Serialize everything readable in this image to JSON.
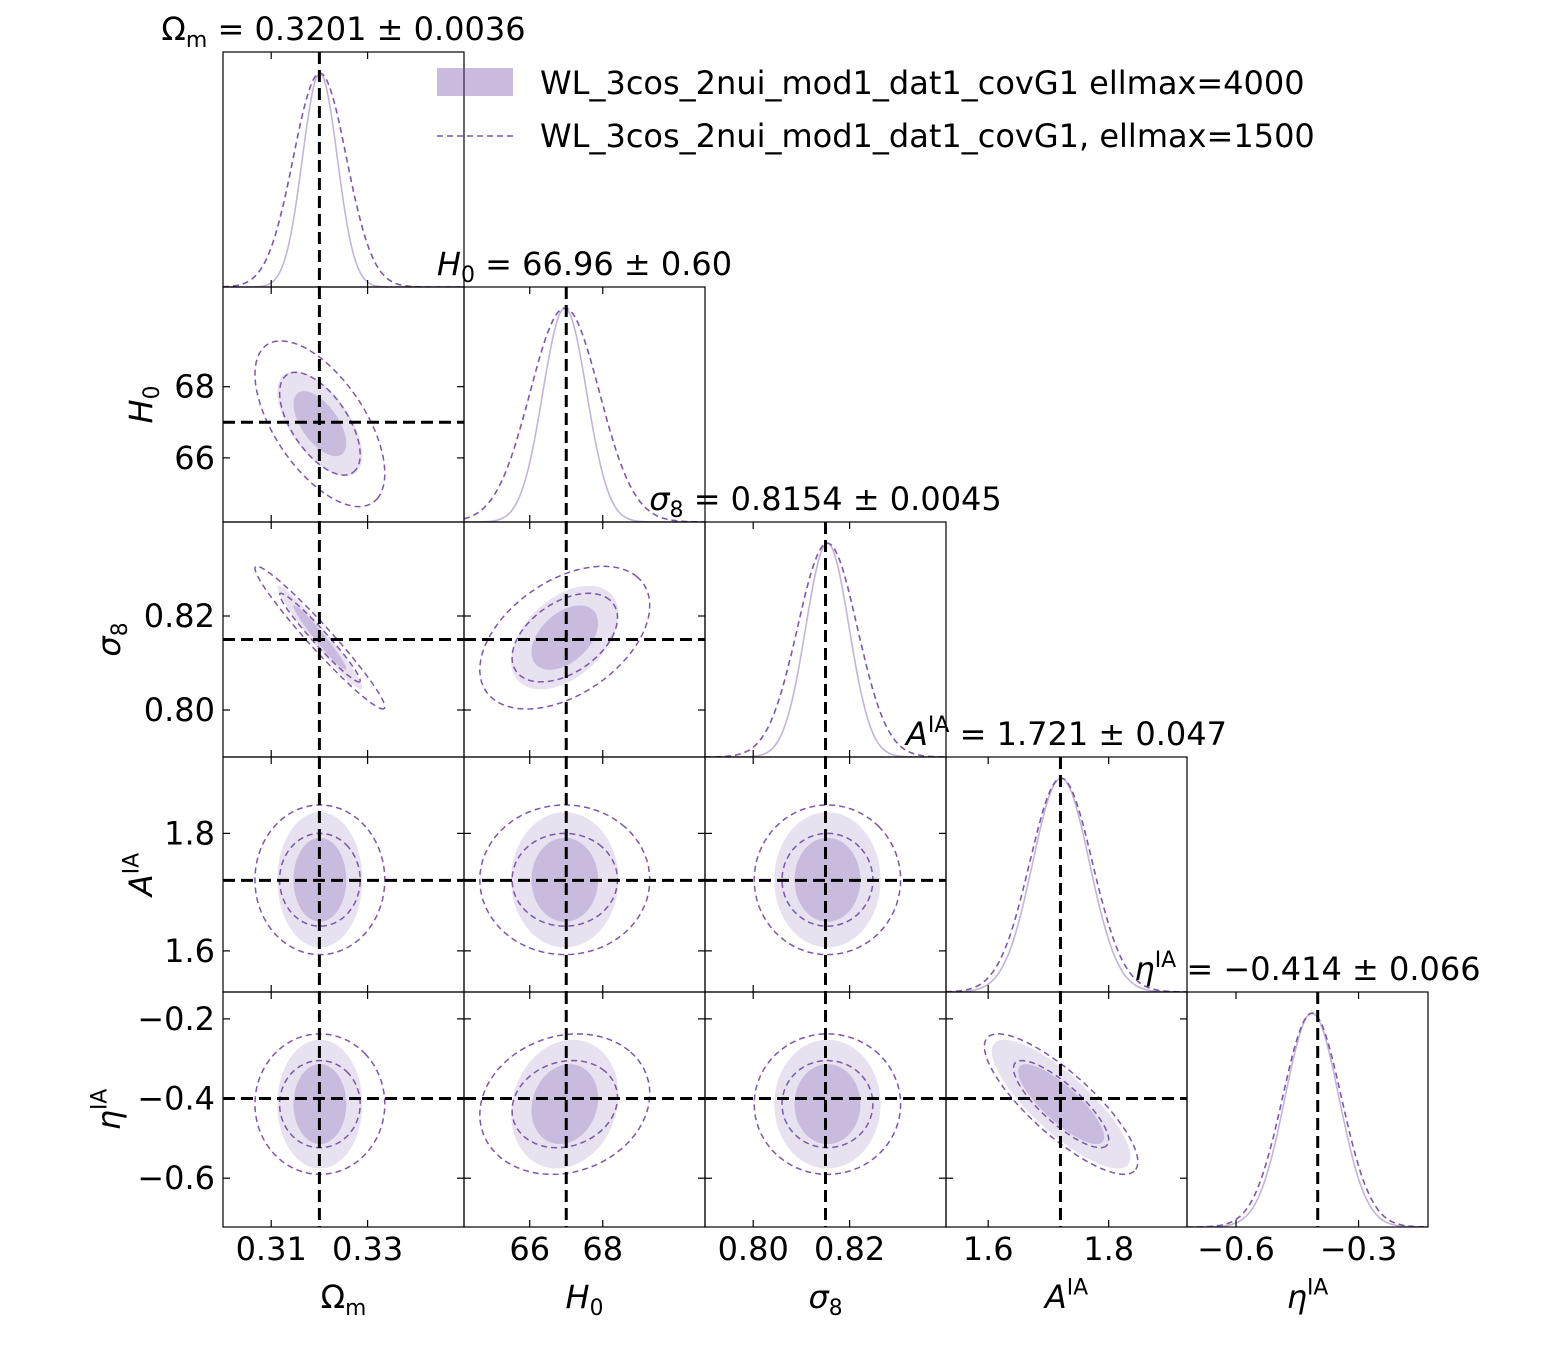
{
  "chart_data": {
    "type": "scatter",
    "subtype": "corner-triangle-plot",
    "grid": false,
    "legend_position": "top-right",
    "colors": {
      "filled": "#7b58ad",
      "dashed": "#7b58ad",
      "marker": "#000000"
    },
    "legend": [
      {
        "style": "filled",
        "label": "WL_3cos_2nui_mod1_dat1_covG1 ellmax=4000"
      },
      {
        "style": "dashed",
        "label": "WL_3cos_2nui_mod1_dat1_covG1, ellmax=1500"
      }
    ],
    "parameters": [
      {
        "key": "Om",
        "label_main": "Ω",
        "label_sub": "m",
        "label_sup": "",
        "italic": false,
        "stat": {
          "lhs_main": "Ω",
          "lhs_sub": "m",
          "lhs_sup": "",
          "rhs": " = 0.3201 ± 0.0036"
        },
        "fiducial": 0.32,
        "range": [
          0.3,
          0.35
        ],
        "ticks": [
          "0.31",
          "0.33"
        ],
        "tick_values": [
          0.31,
          0.33
        ],
        "mean": 0.3201,
        "sigma_filled": 0.0036,
        "sigma_dashed": 0.0055
      },
      {
        "key": "H0",
        "label_main": "H",
        "label_sub": "0",
        "label_sup": "",
        "italic": true,
        "stat": {
          "lhs_main": "H",
          "lhs_sub": "0",
          "lhs_sup": "",
          "rhs": " = 66.96 ± 0.60"
        },
        "fiducial": 67.0,
        "range": [
          64.2,
          70.8
        ],
        "ticks": [
          "66",
          "68"
        ],
        "tick_values": [
          66,
          68
        ],
        "mean": 66.96,
        "sigma_filled": 0.6,
        "sigma_dashed": 0.95
      },
      {
        "key": "s8",
        "label_main": "σ",
        "label_sub": "8",
        "label_sup": "",
        "italic": true,
        "stat": {
          "lhs_main": "σ",
          "lhs_sub": "8",
          "lhs_sup": "",
          "rhs": " = 0.8154 ± 0.0045"
        },
        "fiducial": 0.815,
        "range": [
          0.79,
          0.84
        ],
        "ticks": [
          "0.80",
          "0.82"
        ],
        "tick_values": [
          0.8,
          0.82
        ],
        "mean": 0.8154,
        "sigma_filled": 0.0045,
        "sigma_dashed": 0.0062
      },
      {
        "key": "AIA",
        "label_main": "A",
        "label_sub": "",
        "label_sup": "IA",
        "italic": true,
        "stat": {
          "lhs_main": "A",
          "lhs_sub": "",
          "lhs_sup": "IA",
          "rhs": " = 1.721 ± 0.047"
        },
        "fiducial": 1.72,
        "range": [
          1.53,
          1.93
        ],
        "ticks": [
          "1.6",
          "1.8"
        ],
        "tick_values": [
          1.6,
          1.8
        ],
        "mean": 1.721,
        "sigma_filled": 0.047,
        "sigma_dashed": 0.052
      },
      {
        "key": "eIA",
        "label_main": "η",
        "label_sub": "",
        "label_sup": "IA",
        "italic": true,
        "stat": {
          "lhs_main": "η",
          "lhs_sub": "",
          "lhs_sup": "IA",
          "rhs": " = −0.414 ± 0.066"
        },
        "fiducial": -0.4,
        "range": [
          -0.72,
          -0.13
        ],
        "ticks": [
          "−0.6",
          "−0.3"
        ],
        "tick_values": [
          -0.6,
          -0.3
        ],
        "mean": -0.414,
        "sigma_filled": 0.066,
        "sigma_dashed": 0.072
      }
    ],
    "y_axis_ticks": {
      "H0": {
        "ticks": [
          "66",
          "68"
        ],
        "tick_values": [
          66,
          68
        ]
      },
      "s8": {
        "ticks": [
          "0.80",
          "0.82"
        ],
        "tick_values": [
          0.8,
          0.82
        ]
      },
      "AIA": {
        "ticks": [
          "1.6",
          "1.8"
        ],
        "tick_values": [
          1.6,
          1.8
        ]
      },
      "eIA": {
        "ticks": [
          "−0.6",
          "−0.4",
          "−0.2"
        ],
        "tick_values": [
          -0.6,
          -0.4,
          -0.2
        ]
      }
    },
    "correlations": {
      "H0|Om": -0.6,
      "s8|Om": -0.97,
      "s8|H0": 0.45,
      "AIA|Om": 0.0,
      "AIA|H0": 0.0,
      "AIA|s8": 0.0,
      "eIA|Om": 0.0,
      "eIA|H0": 0.15,
      "eIA|s8": 0.0,
      "eIA|AIA": -0.82
    }
  }
}
